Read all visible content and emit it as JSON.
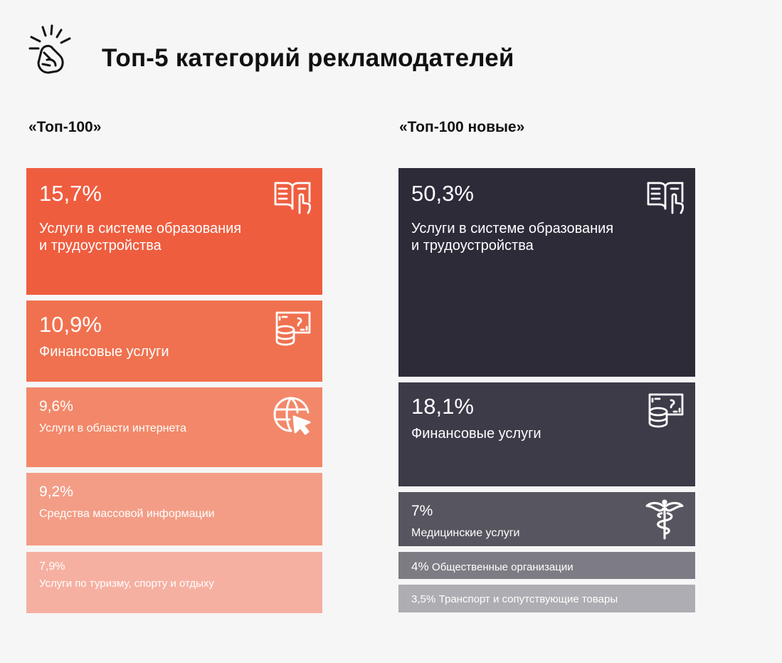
{
  "header": {
    "title": "Топ-5 категорий рекламодателей",
    "logo_icon": "hand-snap-icon"
  },
  "colors": {
    "left": [
      "#ef5d3f",
      "#f0714f",
      "#f28869",
      "#f39d86",
      "#f6b0a1"
    ],
    "right": [
      "#2d2b38",
      "#3d3b48",
      "#57555f",
      "#7d7c84",
      "#adadb3"
    ]
  },
  "chart_data": [
    {
      "type": "treemap",
      "title": "«Топ-100»",
      "items": [
        {
          "percent": "15,7%",
          "value": 15.7,
          "label": "Услуги в системе образования\nи трудоустройства",
          "icon": "book-pointer-icon"
        },
        {
          "percent": "10,9%",
          "value": 10.9,
          "label": "Финансовые услуги",
          "icon": "coins-card-icon"
        },
        {
          "percent": "9,6%",
          "value": 9.6,
          "label": "Услуги в области интернета",
          "icon": "globe-cursor-icon"
        },
        {
          "percent": "9,2%",
          "value": 9.2,
          "label": "Средства массовой информации",
          "icon": ""
        },
        {
          "percent": "7,9%",
          "value": 7.9,
          "label": "Услуги по туризму, спорту и отдыху",
          "icon": ""
        }
      ]
    },
    {
      "type": "treemap",
      "title": "«Топ-100 новые»",
      "items": [
        {
          "percent": "50,3%",
          "value": 50.3,
          "label": "Услуги в системе образования\nи трудоустройства",
          "icon": "book-pointer-icon"
        },
        {
          "percent": "18,1%",
          "value": 18.1,
          "label": "Финансовые услуги",
          "icon": "coins-card-icon"
        },
        {
          "percent": "7%",
          "value": 7,
          "label": "Медицинские услуги",
          "icon": "caduceus-icon"
        },
        {
          "percent": "4%",
          "value": 4,
          "label": "Общественные организации",
          "icon": ""
        },
        {
          "percent": "3,5%",
          "value": 3.5,
          "label": "Транспорт и сопутствующие товары",
          "icon": ""
        }
      ]
    }
  ]
}
